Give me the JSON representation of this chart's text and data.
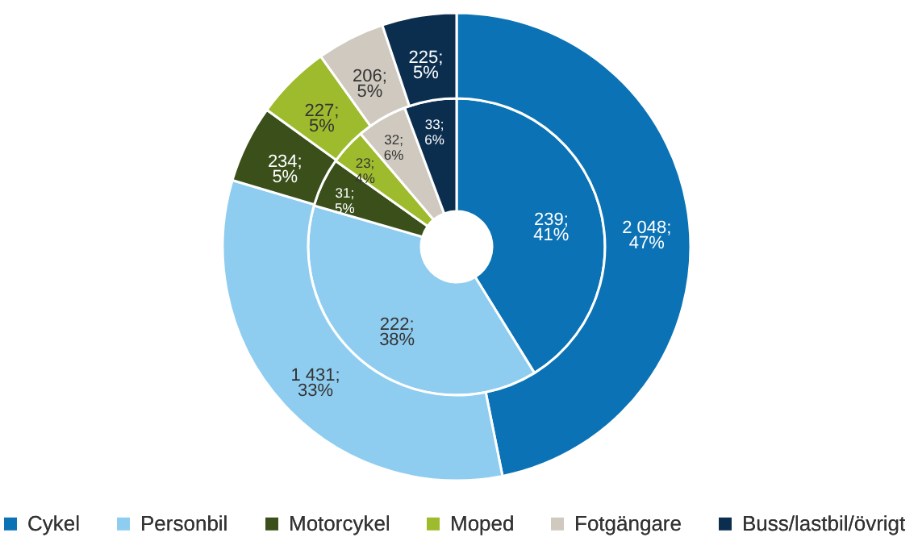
{
  "chart_data": {
    "type": "donut",
    "categories": [
      "Cykel",
      "Personbil",
      "Motorcykel",
      "Moped",
      "Fotgängare",
      "Buss/lastbil/övrigt"
    ],
    "colors": [
      "#0a72b5",
      "#8fcdf0",
      "#3a4f1a",
      "#9dbb2d",
      "#cfc9bf",
      "#0b2e4f"
    ],
    "series": [
      {
        "values": [
          239,
          222,
          31,
          23,
          32,
          33
        ],
        "value_labels": [
          "239;\n41%",
          "222;\n38%",
          "31;\n5%",
          "23;\n4%",
          "32;\n6%",
          "33;\n6%"
        ]
      },
      {
        "values": [
          2048,
          1431,
          234,
          227,
          206,
          225
        ],
        "value_labels": [
          "2 048;\n47%",
          "1 431;\n33%",
          "234;\n5%",
          "227;\n5%",
          "206;\n5%",
          "225;\n5%"
        ]
      }
    ],
    "legend": "bottom"
  }
}
